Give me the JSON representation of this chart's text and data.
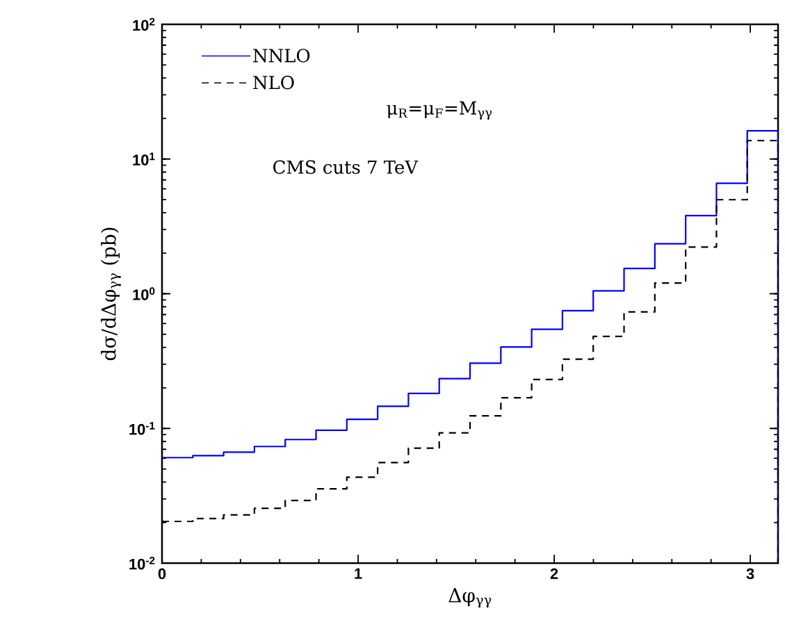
{
  "chart_data": {
    "type": "histogram",
    "xlabel": "Δφ$_{γγ}$",
    "ylabel": "dσ/dΔφ$_{γγ}$ (pb)",
    "bins": [
      0,
      0.1571,
      0.3142,
      0.4712,
      0.6283,
      0.7854,
      0.9425,
      1.0996,
      1.2566,
      1.4137,
      1.5708,
      1.7279,
      1.885,
      2.042,
      2.1991,
      2.3562,
      2.5133,
      2.6704,
      2.8274,
      2.9845,
      3.1416
    ],
    "series": [
      {
        "name": "NNLO",
        "color": "#0000ff",
        "line_style": "solid",
        "values": [
          0.0607,
          0.0628,
          0.0667,
          0.0734,
          0.0827,
          0.097,
          0.117,
          0.146,
          0.182,
          0.234,
          0.305,
          0.402,
          0.544,
          0.748,
          1.05,
          1.54,
          2.35,
          3.8,
          6.6,
          16.2
        ]
      },
      {
        "name": "NLO",
        "color": "#000000",
        "line_style": "dashed",
        "values": [
          0.0204,
          0.0214,
          0.0228,
          0.0255,
          0.0292,
          0.0356,
          0.0435,
          0.0558,
          0.0714,
          0.0926,
          0.124,
          0.169,
          0.231,
          0.327,
          0.482,
          0.733,
          1.2,
          2.22,
          4.99,
          13.7
        ]
      }
    ],
    "annotations": [
      "μ$_{R}$=μ$_{F}$=M$_{γγ}$",
      "CMS cuts 7 TeV"
    ],
    "log": "y",
    "xlim": [
      0,
      3.1416
    ],
    "ylim": [
      0.01,
      100
    ],
    "xticks": [
      0,
      1,
      2,
      3
    ],
    "yticks": [
      {
        "value": 0.01,
        "label": "10$^{-2}$"
      },
      {
        "value": 0.1,
        "label": "10$^{-1}$"
      },
      {
        "value": 1,
        "label": "10$^{0}$"
      },
      {
        "value": 10,
        "label": "10$^{1}$"
      },
      {
        "value": 100,
        "label": "10$^{2}$"
      }
    ],
    "grid": false,
    "legend": "top left"
  }
}
